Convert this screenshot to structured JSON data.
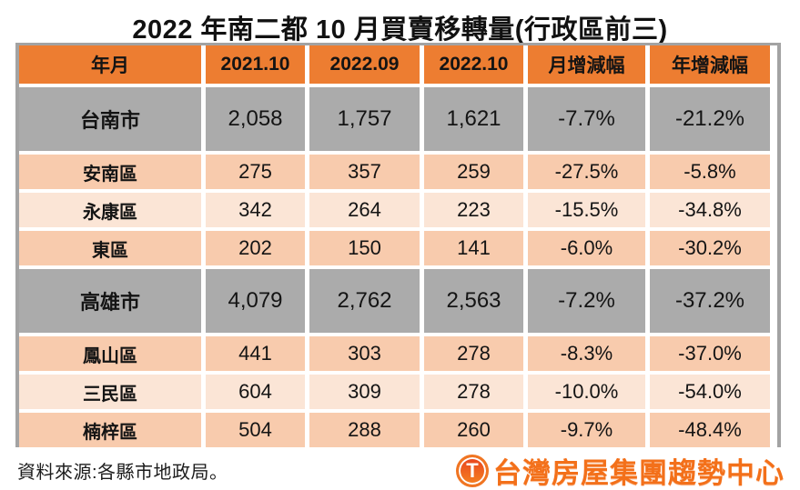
{
  "page": {
    "title": "2022 年南二都 10 月買賣移轉量(行政區前三)"
  },
  "chart_data": {
    "type": "table",
    "title": "2022 年南二都 10 月買賣移轉量(行政區前三)",
    "columns": [
      "年月",
      "2021.10",
      "2022.09",
      "2022.10",
      "月增減幅",
      "年增減幅"
    ],
    "rows": [
      {
        "label": "台南市",
        "row_style": "city",
        "values": [
          "2,058",
          "1,757",
          "1,621",
          "-7.7%",
          "-21.2%"
        ]
      },
      {
        "label": "安南區",
        "row_style": "district-dark",
        "values": [
          "275",
          "357",
          "259",
          "-27.5%",
          "-5.8%"
        ]
      },
      {
        "label": "永康區",
        "row_style": "district-light",
        "values": [
          "342",
          "264",
          "223",
          "-15.5%",
          "-34.8%"
        ]
      },
      {
        "label": "東區",
        "row_style": "district-dark",
        "values": [
          "202",
          "150",
          "141",
          "-6.0%",
          "-30.2%"
        ]
      },
      {
        "label": "高雄市",
        "row_style": "city",
        "values": [
          "4,079",
          "2,762",
          "2,563",
          "-7.2%",
          "-37.2%"
        ]
      },
      {
        "label": "鳳山區",
        "row_style": "district-dark",
        "values": [
          "441",
          "303",
          "278",
          "-8.3%",
          "-37.0%"
        ]
      },
      {
        "label": "三民區",
        "row_style": "district-light",
        "values": [
          "604",
          "309",
          "278",
          "-10.0%",
          "-54.0%"
        ]
      },
      {
        "label": "楠梓區",
        "row_style": "district-dark",
        "values": [
          "504",
          "288",
          "260",
          "-9.7%",
          "-48.4%"
        ]
      }
    ],
    "source_note": "資料來源:各縣市地政局。"
  },
  "branding": {
    "logo_glyph": "T",
    "logo_text": "台灣房屋集團趨勢中心"
  },
  "colors": {
    "header_bg": "#ED7D31",
    "city_row_bg": "#ABABAB",
    "band_dark": "#F8CBAD",
    "band_light": "#FBE5D6",
    "outer_border": "#A3A3A3",
    "logo_orange": "#F3701A"
  }
}
